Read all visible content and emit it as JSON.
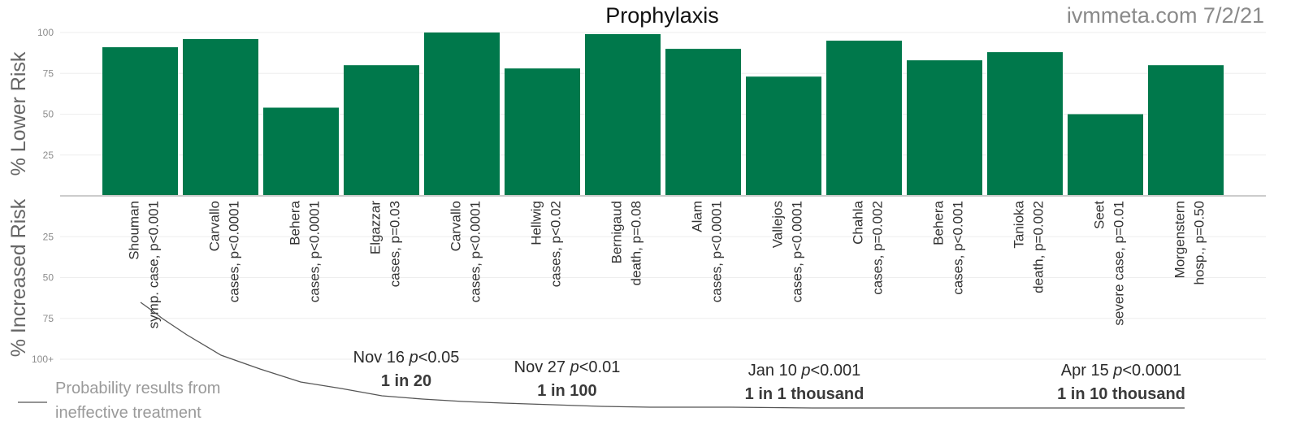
{
  "chart_data": {
    "type": "bar",
    "title": "Prophylaxis",
    "watermark": "ivmmeta.com 7/2/21",
    "upper_ylabel": "% Lower Risk",
    "lower_ylabel": "% Increased Risk",
    "upper_ticks": [
      "100",
      "75",
      "50",
      "25"
    ],
    "lower_ticks": [
      "25",
      "50",
      "75",
      "100+"
    ],
    "ylim": [
      0,
      100
    ],
    "grid": true,
    "colors": {
      "bar": "#00784B",
      "axis": "#cccccc",
      "grid": "#eeeeee",
      "curve": "#555555"
    },
    "studies": [
      {
        "name": "Shouman",
        "detail": "symp. case, p<0.001",
        "value": 91
      },
      {
        "name": "Carvallo",
        "detail": "cases, p<0.0001",
        "value": 96
      },
      {
        "name": "Behera",
        "detail": "cases, p<0.0001",
        "value": 54
      },
      {
        "name": "Elgazzar",
        "detail": "cases, p=0.03",
        "value": 80
      },
      {
        "name": "Carvallo",
        "detail": "cases, p<0.0001",
        "value": 100
      },
      {
        "name": "Hellwig",
        "detail": "cases, p<0.02",
        "value": 78
      },
      {
        "name": "Bernigaud",
        "detail": "death, p=0.08",
        "value": 99
      },
      {
        "name": "Alam",
        "detail": "cases, p<0.0001",
        "value": 90
      },
      {
        "name": "Vallejos",
        "detail": "cases, p<0.0001",
        "value": 73
      },
      {
        "name": "Chahla",
        "detail": "cases, p=0.002",
        "value": 95
      },
      {
        "name": "Behera",
        "detail": "cases, p<0.001",
        "value": 83
      },
      {
        "name": "Tanioka",
        "detail": "death, p=0.002",
        "value": 88
      },
      {
        "name": "Seet",
        "detail": "severe case, p=0.01",
        "value": 50
      },
      {
        "name": "Morgenstern",
        "detail": "hosp., p=0.50",
        "value": 80
      }
    ],
    "milestones": [
      {
        "date": "Nov 16",
        "p": "<0.05",
        "odds": "1 in 20"
      },
      {
        "date": "Nov 27",
        "p": "<0.01",
        "odds": "1 in 100"
      },
      {
        "date": "Jan 10",
        "p": "<0.001",
        "odds": "1 in 1 thousand"
      },
      {
        "date": "Apr 15",
        "p": "<0.0001",
        "odds": "1 in 10 thousand"
      }
    ],
    "legend": {
      "line1": "Probability results from",
      "line2": "ineffective treatment"
    }
  }
}
